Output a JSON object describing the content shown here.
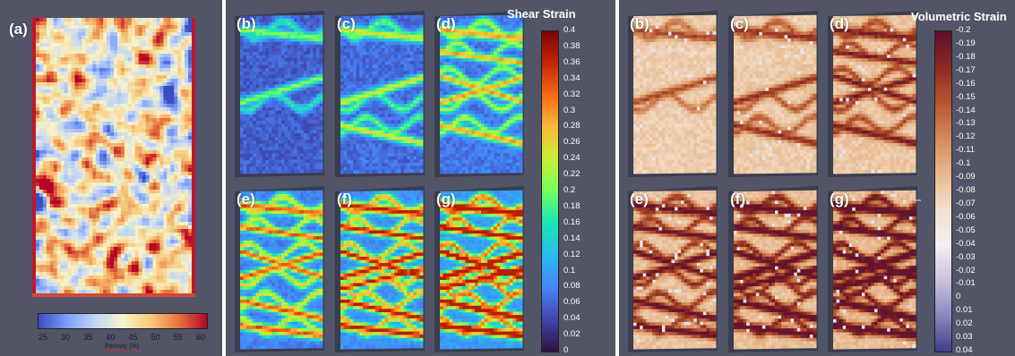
{
  "panel_a": {
    "label": "(a)",
    "colorbar": {
      "ticks": [
        "25",
        "30",
        "35",
        "40",
        "45",
        "50",
        "55",
        "60"
      ],
      "unit_label": "Porosity (%)",
      "colors": [
        "#3b4cc0",
        "#7b9ff9",
        "#c0d4f5",
        "#f7f3cb",
        "#f6c97a",
        "#e8733f",
        "#b40426"
      ]
    }
  },
  "shear_panel": {
    "title": "Shear Strain",
    "labels": [
      "(b)",
      "(c)",
      "(d)",
      "(e)",
      "(f)",
      "(g)"
    ],
    "colorbar": {
      "ticks": [
        "0.4",
        "0.38",
        "0.36",
        "0.34",
        "0.32",
        "0.3",
        "0.28",
        "0.26",
        "0.24",
        "0.22",
        "0.2",
        "0.18",
        "0.16",
        "0.14",
        "0.12",
        "0.1",
        "0.08",
        "0.06",
        "0.04",
        "0.02",
        "0"
      ],
      "colors": [
        "#7a0403",
        "#c42503",
        "#f66b19",
        "#faba39",
        "#c7ef34",
        "#72fe5e",
        "#1ae4b6",
        "#28bceb",
        "#4686fb",
        "#4145ab",
        "#30123b"
      ]
    }
  },
  "volumetric_panel": {
    "title": "Volumetric Strain",
    "labels": [
      "(b)",
      "(c)",
      "(d)",
      "(e)",
      "(f)",
      "(g)"
    ],
    "colorbar": {
      "ticks": [
        "-0.2",
        "-0.19",
        "-0.18",
        "-0.17",
        "-0.16",
        "-0.15",
        "-0.14",
        "-0.13",
        "-0.12",
        "-0.11",
        "-0.1",
        "-0.09",
        "-0.08",
        "-0.07",
        "-0.06",
        "-0.05",
        "-0.04",
        "-0.03",
        "-0.02",
        "-0.01",
        "0",
        "0.01",
        "0.02",
        "0.03",
        "0.04"
      ],
      "colors": [
        "#5c0f2e",
        "#8a2a22",
        "#b5552f",
        "#d4895a",
        "#e7b98f",
        "#f4e0cc",
        "#f2f0f2",
        "#c9c3de",
        "#8a86bf",
        "#3f3d8a"
      ]
    }
  },
  "icons": [
    "axis-triad-icon"
  ]
}
